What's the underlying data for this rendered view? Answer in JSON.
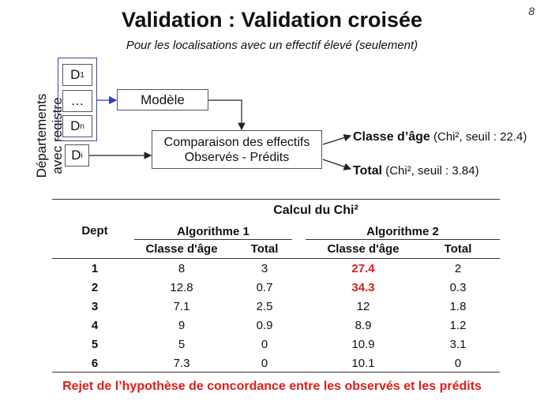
{
  "page_number": "8",
  "title": "Validation : Validation croisée",
  "subtitle": "Pour les localisations avec un effectif élevé (seulement)",
  "diagram": {
    "side_label_line1": "Départements",
    "side_label_line2": "avec registre",
    "d1": "D",
    "d1_sub": "1",
    "dots": "…",
    "dn": "D",
    "dn_sub": "n",
    "di": "D",
    "di_sub": "i",
    "modele": "Modèle",
    "comparaison_line1": "Comparaison des effectifs",
    "comparaison_line2": "Observés - Prédits",
    "out1_main": "Classe d’âge",
    "out1_detail": " (Chi², seuil : 22.4)",
    "out2_main": "Total",
    "out2_detail": " (Chi², seuil : 3.84)",
    "group_border_color": "#3b44a8",
    "arrow_color_blue": "#2a3fd0"
  },
  "table": {
    "caption": "Calcul du Chi²",
    "dept_header": "Dept",
    "algo1_header": "Algorithme 1",
    "algo2_header": "Algorithme 2",
    "sub_headers": [
      "Classe d'âge",
      "Total",
      "Classe d'âge",
      "Total"
    ],
    "rows": [
      {
        "dept": "1",
        "a1_classe": "8",
        "a1_total": "3",
        "a2_classe": "27.4",
        "a2_total": "2"
      },
      {
        "dept": "2",
        "a1_classe": "12.8",
        "a1_total": "0.7",
        "a2_classe": "34.3",
        "a2_total": "0.3"
      },
      {
        "dept": "3",
        "a1_classe": "7.1",
        "a1_total": "2.5",
        "a2_classe": "12",
        "a2_total": "1.8"
      },
      {
        "dept": "4",
        "a1_classe": "9",
        "a1_total": "0.9",
        "a2_classe": "8.9",
        "a2_total": "1.2"
      },
      {
        "dept": "5",
        "a1_classe": "5",
        "a1_total": "0",
        "a2_classe": "10.9",
        "a2_total": "3.1"
      },
      {
        "dept": "6",
        "a1_classe": "7.3",
        "a1_total": "0",
        "a2_classe": "10.1",
        "a2_total": "0"
      }
    ],
    "highlight_color": "#e01b1b"
  },
  "conclusion": "Rejet de l’hypothèse de concordance entre les observés et les prédits"
}
